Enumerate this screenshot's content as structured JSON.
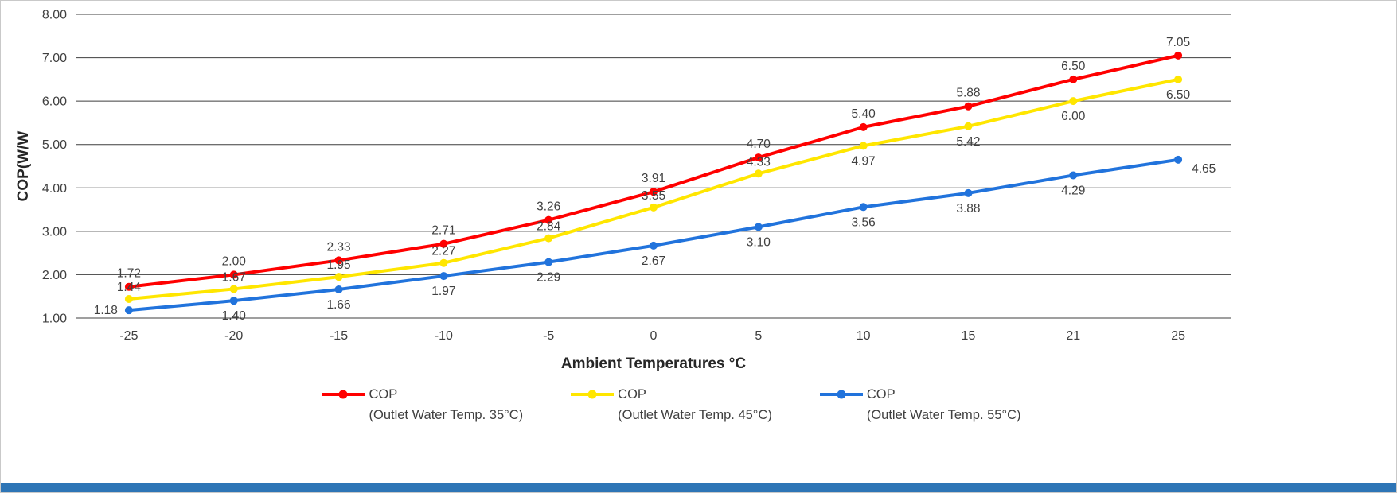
{
  "chart_data": {
    "type": "line",
    "x": [
      -25,
      -20,
      -15,
      -10,
      -5,
      0,
      5,
      10,
      15,
      21,
      25
    ],
    "x_tick_labels": [
      "-25",
      "-20",
      "-15",
      "-10",
      "-5",
      "0",
      "5",
      "10",
      "15",
      "21",
      "25"
    ],
    "series": [
      {
        "name": "COP",
        "sublabel": "(Outlet Water Temp. 35°C)",
        "color": "#FF0000",
        "values": [
          1.72,
          2.0,
          2.33,
          2.71,
          3.26,
          3.91,
          4.7,
          5.4,
          5.88,
          6.5,
          7.05
        ]
      },
      {
        "name": "COP",
        "sublabel": "(Outlet Water Temp. 45°C)",
        "color": "#FFE600",
        "values": [
          1.44,
          1.67,
          1.95,
          2.27,
          2.84,
          3.55,
          4.33,
          4.97,
          5.42,
          6.0,
          6.5
        ]
      },
      {
        "name": "COP",
        "sublabel": "(Outlet Water Temp. 55°C)",
        "color": "#2173DC",
        "values": [
          1.18,
          1.4,
          1.66,
          1.97,
          2.29,
          2.67,
          3.1,
          3.56,
          3.88,
          4.29,
          4.65
        ]
      }
    ],
    "title": "",
    "xlabel": "Ambient Temperatures °C",
    "ylabel": "COP(W/W",
    "ylim": [
      1.0,
      8.0
    ],
    "y_ticks": [
      "8.00",
      "7.00",
      "6.00",
      "5.00",
      "4.00",
      "3.00",
      "2.00",
      "1.00"
    ],
    "grid": "horizontal",
    "legend_position": "bottom"
  },
  "style": {
    "grid_color": "#3f3f3f",
    "tick_label_color": "#404040",
    "data_label_color": "#404040",
    "footer_bar_color": "#2E75B6"
  }
}
